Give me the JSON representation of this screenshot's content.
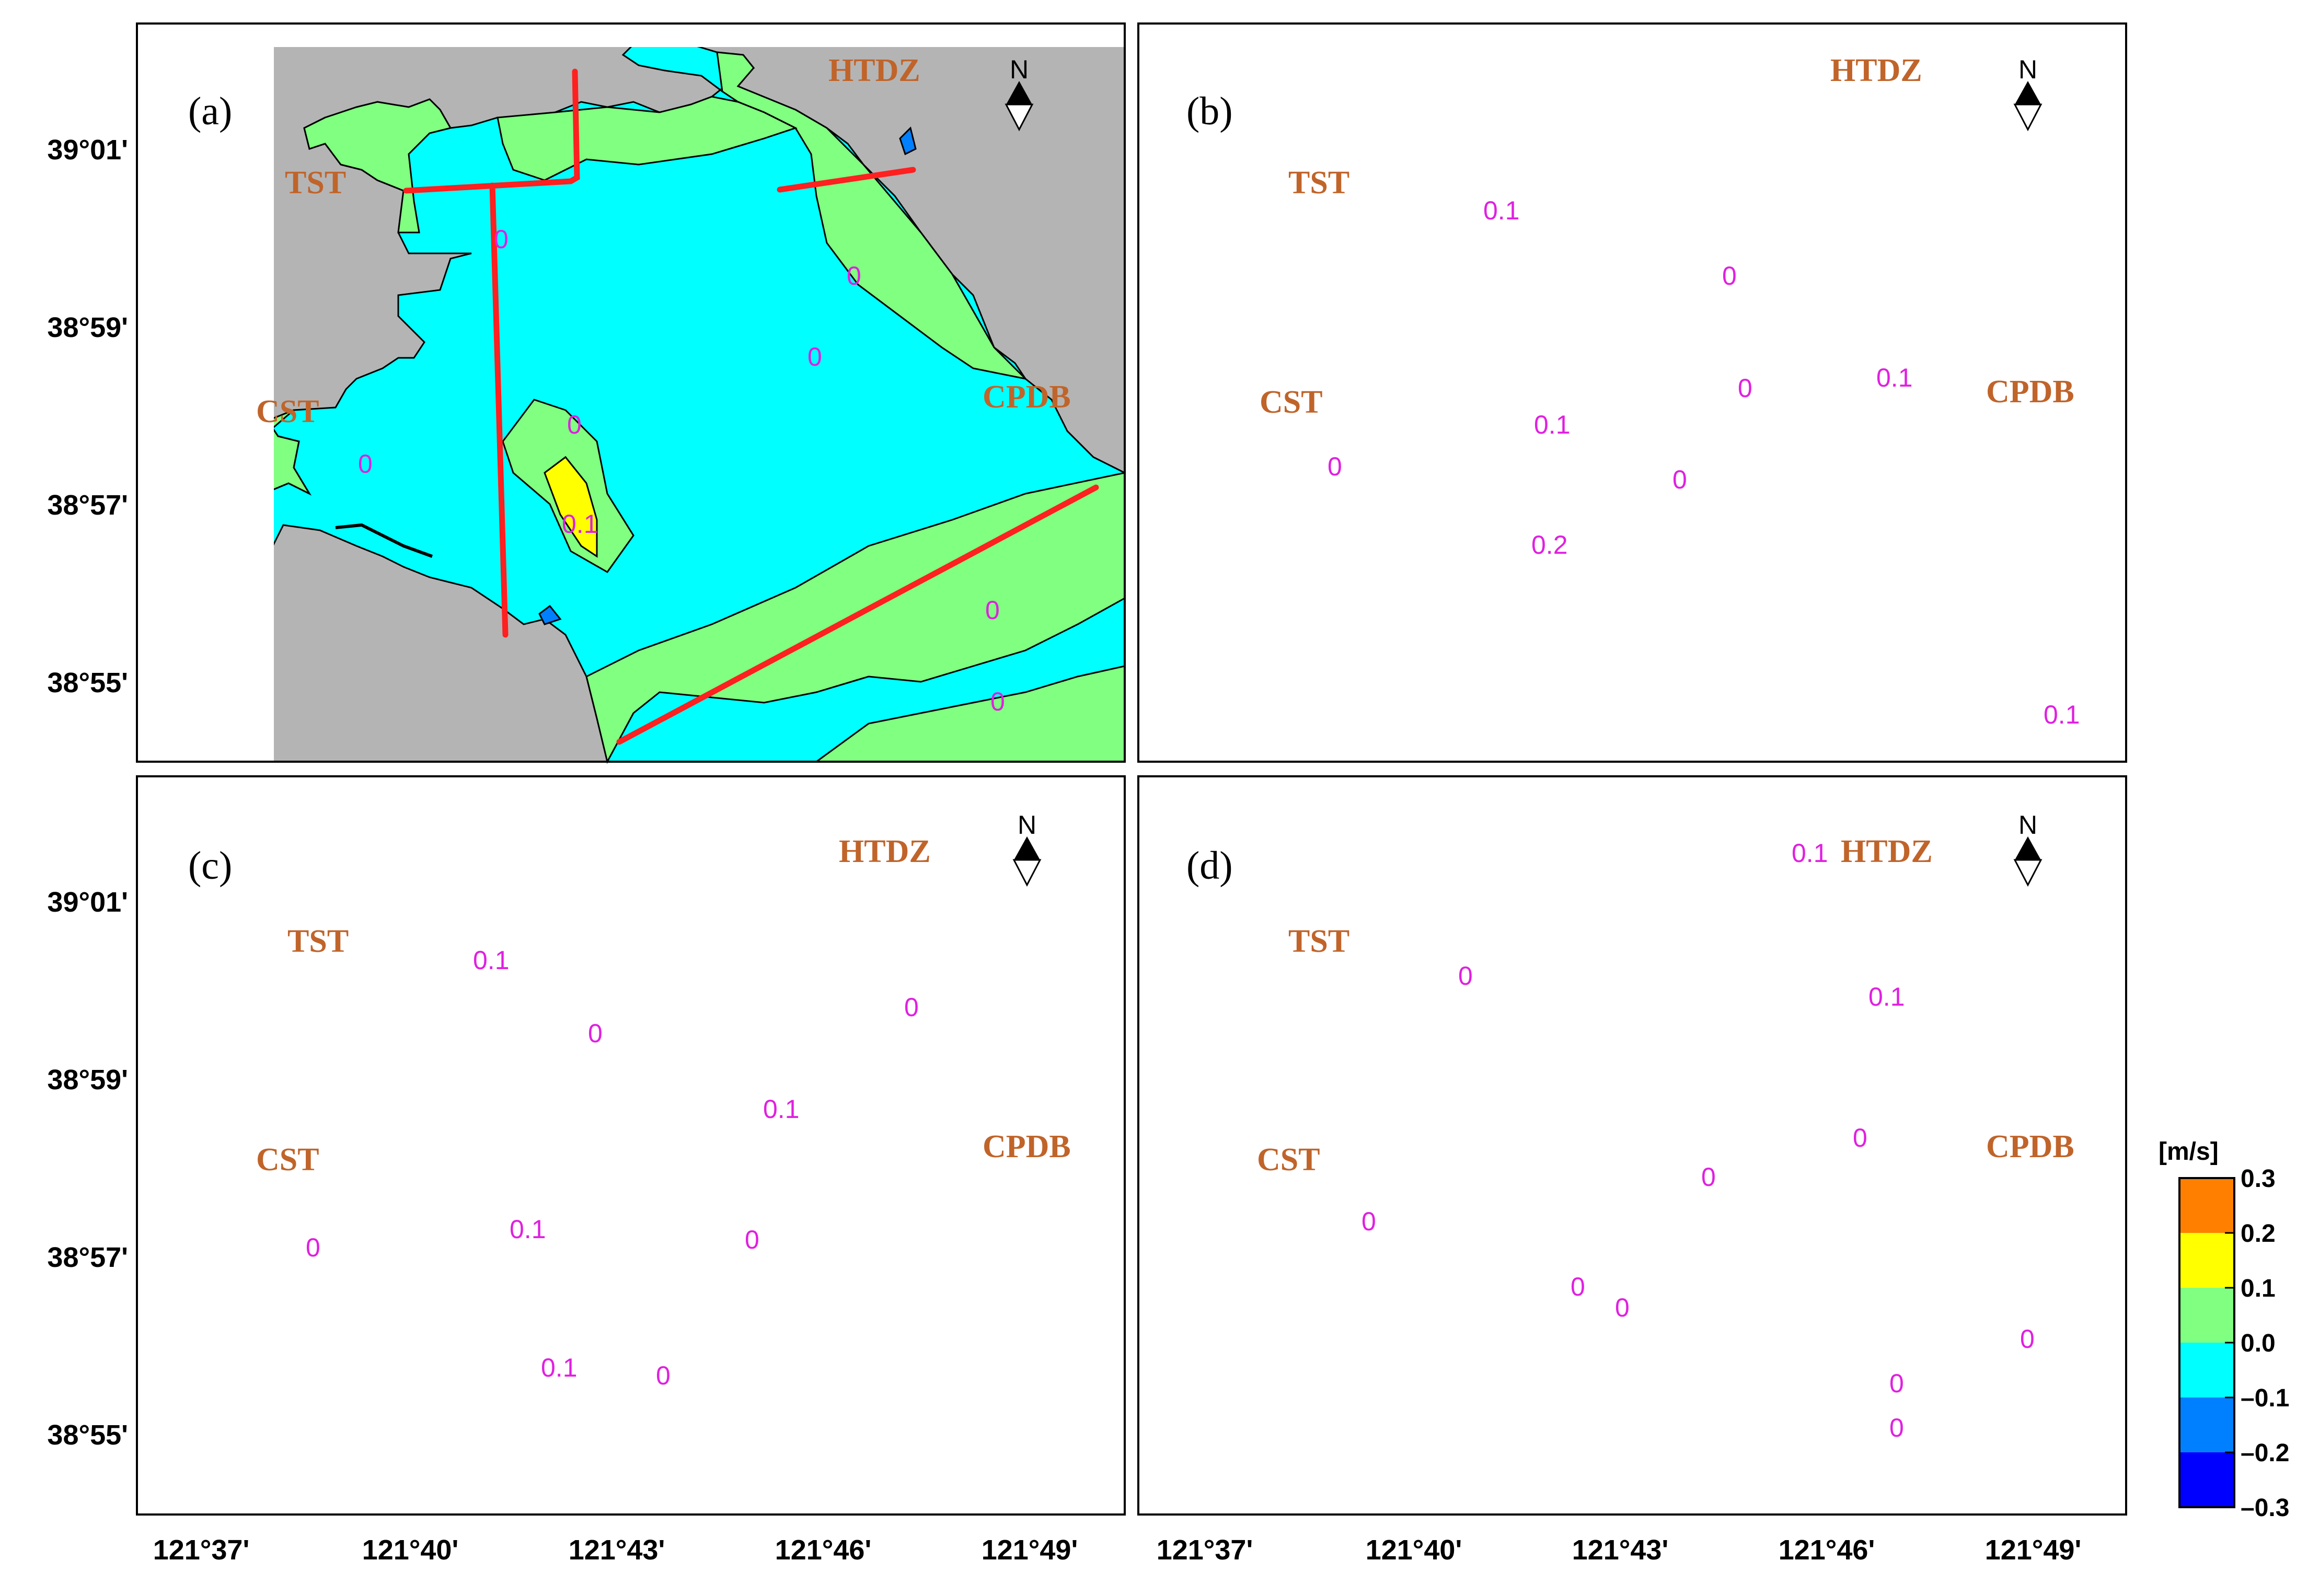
{
  "figure": {
    "x_ticks": [
      "121°37'",
      "121°40'",
      "121°43'",
      "121°46'",
      "121°49'"
    ],
    "y_ticks": [
      "39°01'",
      "38°59'",
      "38°57'",
      "38°55'"
    ],
    "north_label": "N",
    "place_names": [
      "HTDZ",
      "TST",
      "CST",
      "CPDB"
    ]
  },
  "panels": [
    {
      "id": "a",
      "label": "(a)",
      "contour_labels": [
        "0",
        "0",
        "0",
        "0",
        "0.1",
        "0",
        "0",
        "0"
      ]
    },
    {
      "id": "b",
      "label": "(b)",
      "contour_labels": [
        "0.1",
        "0",
        "0",
        "0.1",
        "0.1",
        "0",
        "0",
        "0.2",
        "0.1"
      ]
    },
    {
      "id": "c",
      "label": "(c)",
      "contour_labels": [
        "0.1",
        "0",
        "0",
        "0.1",
        "0.1",
        "0",
        "0",
        "0",
        "0.1"
      ]
    },
    {
      "id": "d",
      "label": "(d)",
      "contour_labels": [
        "0.1",
        "0",
        "0.1",
        "0",
        "0",
        "0",
        "0",
        "0",
        "0",
        "0",
        "0"
      ]
    }
  ],
  "colorbar": {
    "unit": "[m/s]",
    "ticks": [
      "0.3",
      "0.2",
      "0.1",
      "0.0",
      "–0.1",
      "–0.2",
      "–0.3"
    ],
    "colors": [
      "#ff8000",
      "#ffff00",
      "#80ff80",
      "#00ffff",
      "#0080ff",
      "#0000ff"
    ]
  },
  "colors": {
    "land": "#b4b4b4",
    "section_line": "#ff2020",
    "place_label": "#c0642a",
    "contour_label": "#e020e0",
    "negative": "#00ffff",
    "positive": "#80ff80",
    "strong_positive": "#ffff00",
    "strong_negative": "#0080ff"
  }
}
